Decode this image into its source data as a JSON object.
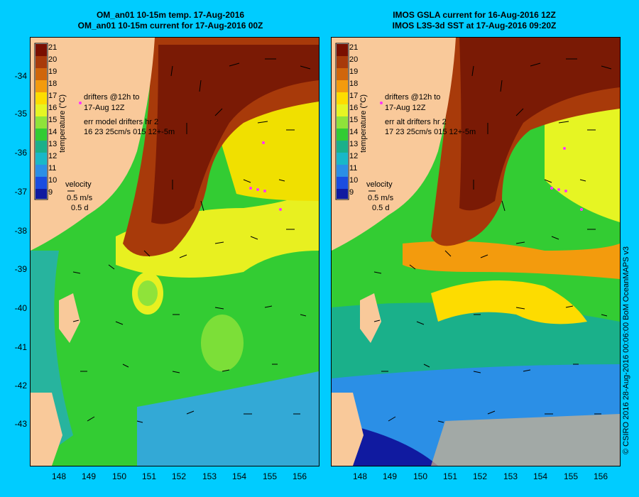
{
  "left_panel": {
    "title_line1": "OM_an01 10-15m temp. 17-Aug-2016",
    "title_line2": "OM_an01 10-15m current for 17-Aug-2016 00Z",
    "drifters_text_line1": "drifters @12h to",
    "drifters_text_line2": "17-Aug 12Z",
    "err_text_line1": "err model drifters hr 2",
    "err_text_line2": "16 23 25cm/s 015 12+-5m",
    "velocity_label": "velocity",
    "velocity_scale": "0.5 m/s",
    "velocity_time": "0.5 d"
  },
  "right_panel": {
    "title_line1": "IMOS GSLA current for 16-Aug-2016 12Z",
    "title_line2": "IMOS L3S-3d SST at 17-Aug-2016 09:20Z",
    "drifters_text_line1": "drifters @12h to",
    "drifters_text_line2": "17-Aug 12Z",
    "err_text_line1": "err alt drifters hr 2",
    "err_text_line2": "17 23 25cm/s 015 12+-5m",
    "velocity_label": "velocity",
    "velocity_scale": "0.5 m/s",
    "velocity_time": "0.5 d"
  },
  "colorbar": {
    "title": "temperature (°C)",
    "ticks": [
      "21",
      "20",
      "19",
      "18",
      "17",
      "16",
      "15",
      "14",
      "13",
      "12",
      "11",
      "10",
      "9"
    ],
    "colors": [
      "#7a0f00",
      "#a83a0a",
      "#d0660c",
      "#f39b0d",
      "#fddc00",
      "#e6f523",
      "#8fe33a",
      "#33cc33",
      "#1ab08a",
      "#19b8c8",
      "#2b8fe6",
      "#1a4de0",
      "#101aa0"
    ]
  },
  "axes": {
    "y_ticks": [
      "-34",
      "-35",
      "-36",
      "-37",
      "-38",
      "-39",
      "-40",
      "-41",
      "-42",
      "-43"
    ],
    "x_ticks": [
      "148",
      "149",
      "150",
      "151",
      "152",
      "153",
      "154",
      "155",
      "156"
    ]
  },
  "credit": "© CSIRO 2016   28-Aug-2016 00:06:00 BoM OceanMAPS v3",
  "colors": {
    "background": "#00ccff",
    "land": "#f9c99a",
    "warm": "#8b2a0a",
    "cool": "#33cc33",
    "cold": "#3399ff",
    "drifter": "#ff33ff"
  }
}
